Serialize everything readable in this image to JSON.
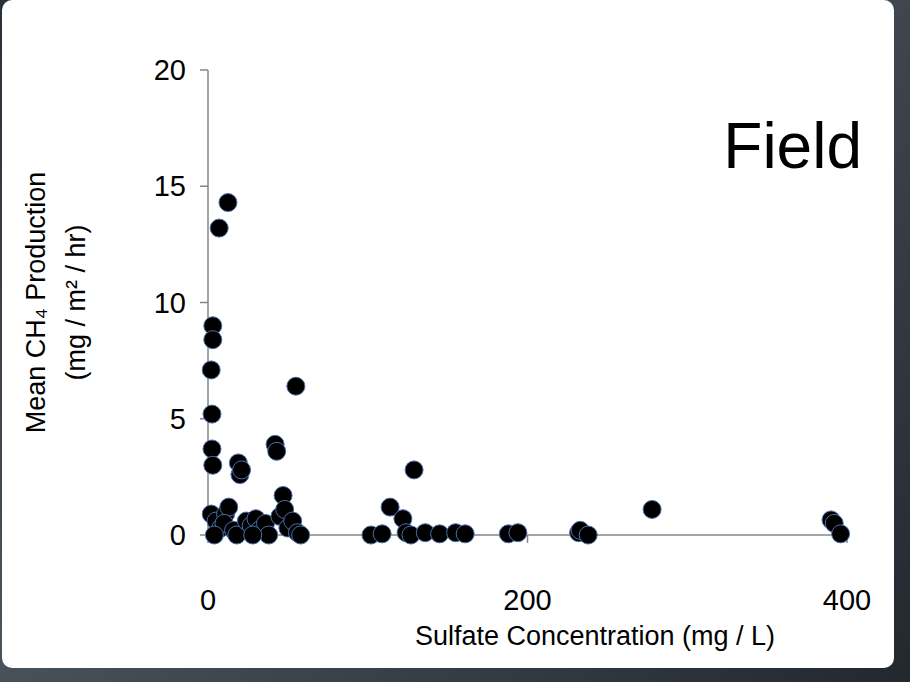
{
  "chart_data": {
    "type": "scatter",
    "title": "Field",
    "x_label": "Sulfate Concentration (mg / L)",
    "y_label": [
      "Mean CH₄ Production",
      "(mg / m² / hr)"
    ],
    "x": [
      12.5,
      7,
      3,
      3,
      2,
      2.5,
      2.5,
      3,
      2,
      5,
      8,
      11,
      13,
      10,
      16,
      18,
      19,
      20,
      21,
      24,
      27,
      30,
      32,
      36,
      38,
      42,
      43,
      45,
      47,
      48,
      50,
      53,
      55,
      56,
      58,
      28,
      4,
      102,
      109,
      114,
      122,
      124,
      127,
      129,
      136,
      145,
      155,
      161,
      188,
      194,
      232,
      233,
      238,
      278,
      390,
      392,
      396
    ],
    "values": [
      14.3,
      13.2,
      9.0,
      8.4,
      7.1,
      5.2,
      3.7,
      3.0,
      0.9,
      0.6,
      0.3,
      0.9,
      1.2,
      0.5,
      0.2,
      0.0,
      3.1,
      2.6,
      2.8,
      0.6,
      0.4,
      0.7,
      0.2,
      0.5,
      0.0,
      3.9,
      3.6,
      0.8,
      1.7,
      1.1,
      0.3,
      0.6,
      6.4,
      0.1,
      0.0,
      0.0,
      0.0,
      0.0,
      0.05,
      1.2,
      0.7,
      0.1,
      0.0,
      2.8,
      0.1,
      0.05,
      0.1,
      0.05,
      0.05,
      0.1,
      0.1,
      0.2,
      0.0,
      1.1,
      0.65,
      0.5,
      0.05
    ],
    "color": "#000000",
    "marker": "circle",
    "xlim": [
      0,
      400
    ],
    "xticks": [
      0,
      200,
      400
    ],
    "ylim": [
      0,
      20
    ],
    "yticks": [
      0,
      5,
      10,
      15,
      20
    ],
    "grid": false
  }
}
